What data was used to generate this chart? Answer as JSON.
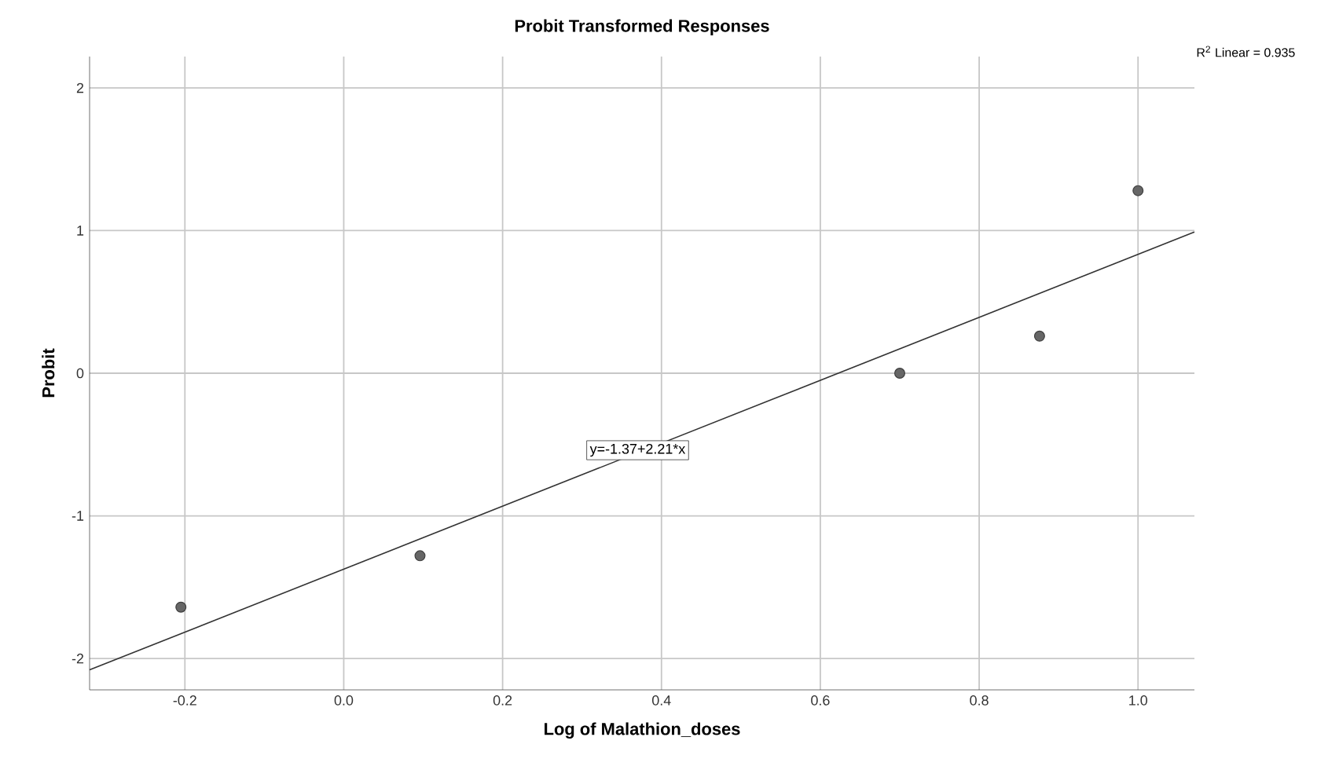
{
  "chart_data": {
    "type": "scatter",
    "title": "Probit Transformed Responses",
    "xlabel": "Log of Malathion_doses",
    "ylabel": "Probit",
    "series": [
      {
        "marker": "circle",
        "color": "#666666",
        "x": [
          -0.205,
          0.096,
          0.7,
          0.876,
          1.0
        ],
        "values": [
          -1.64,
          -1.28,
          0.0,
          0.26,
          1.28
        ]
      },
      {
        "type": "line",
        "marker": "none",
        "color": "#333333",
        "x": [
          -0.32,
          1.071
        ],
        "values": [
          -2.08,
          0.99
        ]
      }
    ],
    "annotations": [
      {
        "text": "y=-1.37+2.21*x",
        "x": 0.37,
        "y": -0.54
      },
      "R$^{2}$ Linear = 0.935"
    ],
    "xlim": [
      -0.32,
      1.071
    ],
    "ylim": [
      -2.22,
      2.22
    ],
    "xticks": [
      -0.2,
      {
        "value": 0,
        "label": "0.0"
      },
      0.2,
      0.4,
      0.6,
      0.8,
      {
        "value": 1,
        "label": "1.0"
      }
    ],
    "yticks": [
      -2,
      -1,
      0,
      1,
      2
    ],
    "grid": true
  }
}
